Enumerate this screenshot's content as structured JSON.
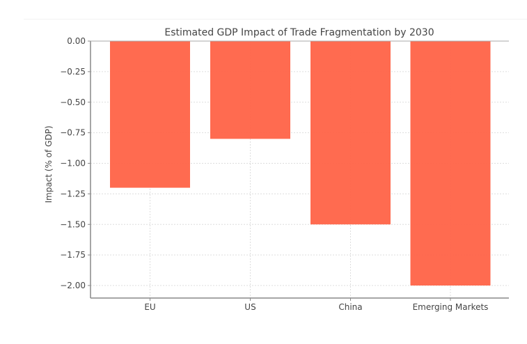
{
  "chart_data": {
    "type": "bar",
    "title": "Estimated GDP Impact of Trade Fragmentation by 2030",
    "xlabel": "",
    "ylabel": "Impact (% of GDP)",
    "categories": [
      "EU",
      "US",
      "China",
      "Emerging Markets"
    ],
    "values": [
      -1.2,
      -0.8,
      -1.5,
      -2.0
    ],
    "ylim": [
      -2.1,
      0.0
    ],
    "yticks": [
      0.0,
      -0.25,
      -0.5,
      -0.75,
      -1.0,
      -1.25,
      -1.5,
      -1.75,
      -2.0
    ],
    "ytick_labels": [
      "0.00",
      "−0.25",
      "−0.50",
      "−0.75",
      "−1.00",
      "−1.25",
      "−1.50",
      "−1.75",
      "−2.00"
    ],
    "grid": true,
    "bar_color": "#ff6347"
  }
}
